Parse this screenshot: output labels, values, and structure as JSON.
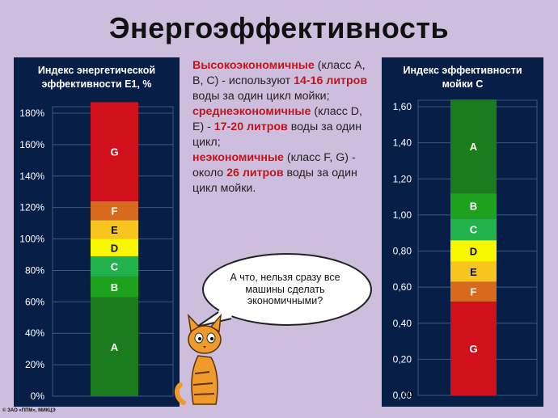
{
  "page": {
    "title": "Энергоэффективность",
    "copyright": "© ЗАО «ППМ», МИКЦЭ",
    "stray_text": "00"
  },
  "description": {
    "p1": [
      {
        "text": "Высокоэкономичные",
        "red": true
      },
      {
        "text": " (класс A, B, C) - используют ",
        "red": false
      },
      {
        "text": "14-16 литров",
        "red": true
      },
      {
        "text": " воды за один цикл мойки;",
        "red": false
      }
    ],
    "p2": [
      {
        "text": "среднеэкономичные",
        "red": true
      },
      {
        "text": " (класс D, E) - ",
        "red": false
      },
      {
        "text": "17-20 литров",
        "red": true
      },
      {
        "text": " воды за один цикл;",
        "red": false
      }
    ],
    "p3": [
      {
        "text": "неэкономичные",
        "red": true
      },
      {
        "text": " (класс F, G) - около ",
        "red": false
      },
      {
        "text": "26 литров",
        "red": true
      },
      {
        "text": " воды за один цикл мойки.",
        "red": false
      }
    ]
  },
  "bubble": {
    "text": "А что, нельзя сразу все машины сделать экономичными?"
  },
  "colors": {
    "chart_bg": "#071f47",
    "grid": "#3a5a82",
    "A": "#1a7c1a",
    "B": "#1ea21e",
    "C": "#22b24c",
    "D": "#f7f700",
    "E": "#f7c51e",
    "F": "#d86a1e",
    "G": "#d0111b"
  },
  "chart_data": [
    {
      "type": "bar",
      "stacked": true,
      "title_lines": [
        "Индекс энергетической",
        "эффективности Е1, %"
      ],
      "ylim": [
        0,
        180
      ],
      "yticks": [
        0,
        20,
        40,
        60,
        80,
        100,
        120,
        140,
        160,
        180
      ],
      "ytick_labels": [
        "0%",
        "20%",
        "40%",
        "60%",
        "80%",
        "100%",
        "120%",
        "140%",
        "160%",
        "180%"
      ],
      "segments": [
        {
          "label": "A",
          "from": 0,
          "to": 63
        },
        {
          "label": "B",
          "from": 63,
          "to": 76
        },
        {
          "label": "C",
          "from": 76,
          "to": 89
        },
        {
          "label": "D",
          "from": 89,
          "to": 100
        },
        {
          "label": "E",
          "from": 100,
          "to": 112
        },
        {
          "label": "F",
          "from": 112,
          "to": 124
        },
        {
          "label": "G",
          "from": 124,
          "to": 187
        }
      ]
    },
    {
      "type": "bar",
      "stacked": true,
      "title_lines": [
        "Индекс эффективности",
        "мойки С"
      ],
      "ylim": [
        0,
        1.6
      ],
      "yticks": [
        0,
        0.2,
        0.4,
        0.6,
        0.8,
        1.0,
        1.2,
        1.4,
        1.6
      ],
      "ytick_labels": [
        "0,00",
        "0,20",
        "0,40",
        "0,60",
        "0,80",
        "1,00",
        "1,20",
        "1,40",
        "1,60"
      ],
      "segments": [
        {
          "label": "G",
          "from": 0,
          "to": 0.52
        },
        {
          "label": "F",
          "from": 0.52,
          "to": 0.63
        },
        {
          "label": "E",
          "from": 0.63,
          "to": 0.74
        },
        {
          "label": "D",
          "from": 0.74,
          "to": 0.86
        },
        {
          "label": "C",
          "from": 0.86,
          "to": 0.98
        },
        {
          "label": "B",
          "from": 0.98,
          "to": 1.12
        },
        {
          "label": "A",
          "from": 1.12,
          "to": 1.64
        }
      ]
    }
  ]
}
